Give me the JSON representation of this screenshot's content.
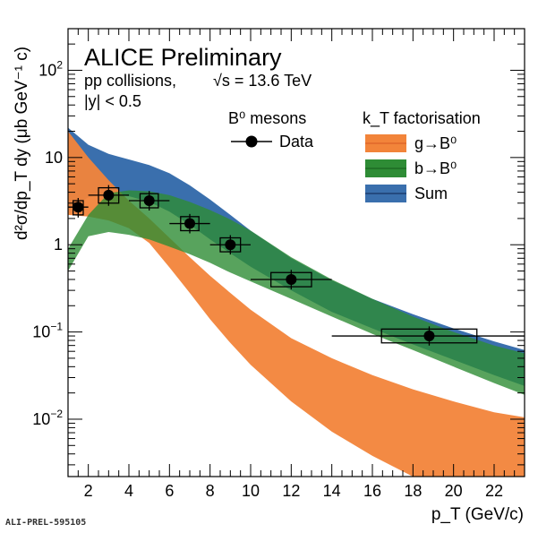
{
  "chart_data": {
    "type": "line",
    "title": "ALICE Preliminary",
    "subtitle_collisions": "pp collisions,",
    "subtitle_energy": "√s = 13.6 TeV",
    "subtitle_rapidity": "|y| < 0.5",
    "xlabel": "p_T (GeV/c)",
    "ylabel": "d²σ/dp_T dy (μb GeV⁻¹ c)",
    "xlim": [
      1,
      23.5
    ],
    "ylim": [
      0.0022,
      300
    ],
    "yscale": "log",
    "xticks": [
      "2",
      "4",
      "6",
      "8",
      "10",
      "12",
      "14",
      "16",
      "18",
      "20",
      "22"
    ],
    "yticks": [
      {
        "base": "10",
        "exp": "−2",
        "value": 0.01
      },
      {
        "base": "10",
        "exp": "−1",
        "value": 0.1
      },
      {
        "base": "1",
        "exp": "",
        "value": 1
      },
      {
        "base": "10",
        "exp": "",
        "value": 10
      },
      {
        "base": "10",
        "exp": "2",
        "value": 100
      }
    ],
    "legend_left_title": "B⁰ mesons",
    "legend_right_title": "k_T factorisation",
    "legend_placement": "top-right",
    "data": {
      "name": "Data",
      "points": [
        {
          "x": 1.5,
          "y": 2.7,
          "xlo": 1,
          "xhi": 2,
          "sys_w": 0.5,
          "sys_lo": 2.2,
          "sys_hi": 3.2
        },
        {
          "x": 3.0,
          "y": 3.7,
          "xlo": 2,
          "xhi": 4,
          "sys_w": 1.0,
          "sys_lo": 3.0,
          "sys_hi": 4.5
        },
        {
          "x": 5.0,
          "y": 3.2,
          "xlo": 4,
          "xhi": 6,
          "sys_w": 0.9,
          "sys_lo": 2.65,
          "sys_hi": 3.85
        },
        {
          "x": 7.0,
          "y": 1.75,
          "xlo": 6,
          "xhi": 8,
          "sys_w": 0.9,
          "sys_lo": 1.45,
          "sys_hi": 2.1
        },
        {
          "x": 9.0,
          "y": 1.0,
          "xlo": 8,
          "xhi": 10,
          "sys_w": 1.0,
          "sys_lo": 0.83,
          "sys_hi": 1.2
        },
        {
          "x": 12.0,
          "y": 0.4,
          "xlo": 10,
          "xhi": 14,
          "sys_w": 2.0,
          "sys_lo": 0.33,
          "sys_hi": 0.48
        },
        {
          "x": 18.8,
          "y": 0.09,
          "xlo": 14,
          "xhi": 23.5,
          "sys_w": 4.7,
          "sys_lo": 0.075,
          "sys_hi": 0.108
        }
      ]
    },
    "series": [
      {
        "name": "Sum",
        "color": "#3a6fad",
        "x": [
          1,
          2,
          3,
          4,
          5,
          6,
          7,
          8,
          9,
          10,
          12,
          14,
          16,
          18,
          20,
          22,
          23.5
        ],
        "lo": [
          2.5,
          3.5,
          3.8,
          3.6,
          3.1,
          2.4,
          1.7,
          1.15,
          0.8,
          0.56,
          0.3,
          0.17,
          0.11,
          0.072,
          0.048,
          0.032,
          0.024
        ],
        "hi": [
          22,
          14,
          11,
          9.5,
          8.2,
          6.6,
          4.8,
          3.3,
          2.2,
          1.45,
          0.7,
          0.39,
          0.24,
          0.16,
          0.11,
          0.078,
          0.062
        ]
      },
      {
        "name": "g→B⁰",
        "color": "#f2843a",
        "x": [
          1,
          2,
          3,
          4,
          5,
          6,
          7,
          8,
          9,
          10,
          12,
          14,
          16,
          18,
          20,
          22,
          23.5
        ],
        "lo": [
          2.2,
          2.1,
          1.9,
          1.55,
          1.05,
          0.55,
          0.28,
          0.14,
          0.075,
          0.042,
          0.016,
          0.0072,
          0.0038,
          0.0022,
          0.0014,
          0.0011,
          0.0009
        ],
        "hi": [
          20,
          10,
          5.5,
          3.2,
          2.0,
          1.2,
          0.72,
          0.44,
          0.28,
          0.18,
          0.085,
          0.05,
          0.032,
          0.022,
          0.016,
          0.012,
          0.0105
        ]
      },
      {
        "name": "b→B⁰",
        "color": "#2e8c35",
        "x": [
          1,
          2,
          3,
          4,
          5,
          6,
          7,
          8,
          9,
          10,
          12,
          14,
          16,
          18,
          20,
          22,
          23.5
        ],
        "lo": [
          0.5,
          1.25,
          1.4,
          1.3,
          1.15,
          0.95,
          0.78,
          0.62,
          0.48,
          0.38,
          0.24,
          0.15,
          0.095,
          0.062,
          0.04,
          0.026,
          0.019
        ],
        "hi": [
          0.9,
          2.2,
          3.9,
          4.2,
          4.1,
          3.7,
          3.1,
          2.5,
          1.95,
          1.45,
          0.72,
          0.4,
          0.24,
          0.15,
          0.1,
          0.07,
          0.057
        ]
      }
    ],
    "footer_id": "ALI-PREL-595105"
  }
}
